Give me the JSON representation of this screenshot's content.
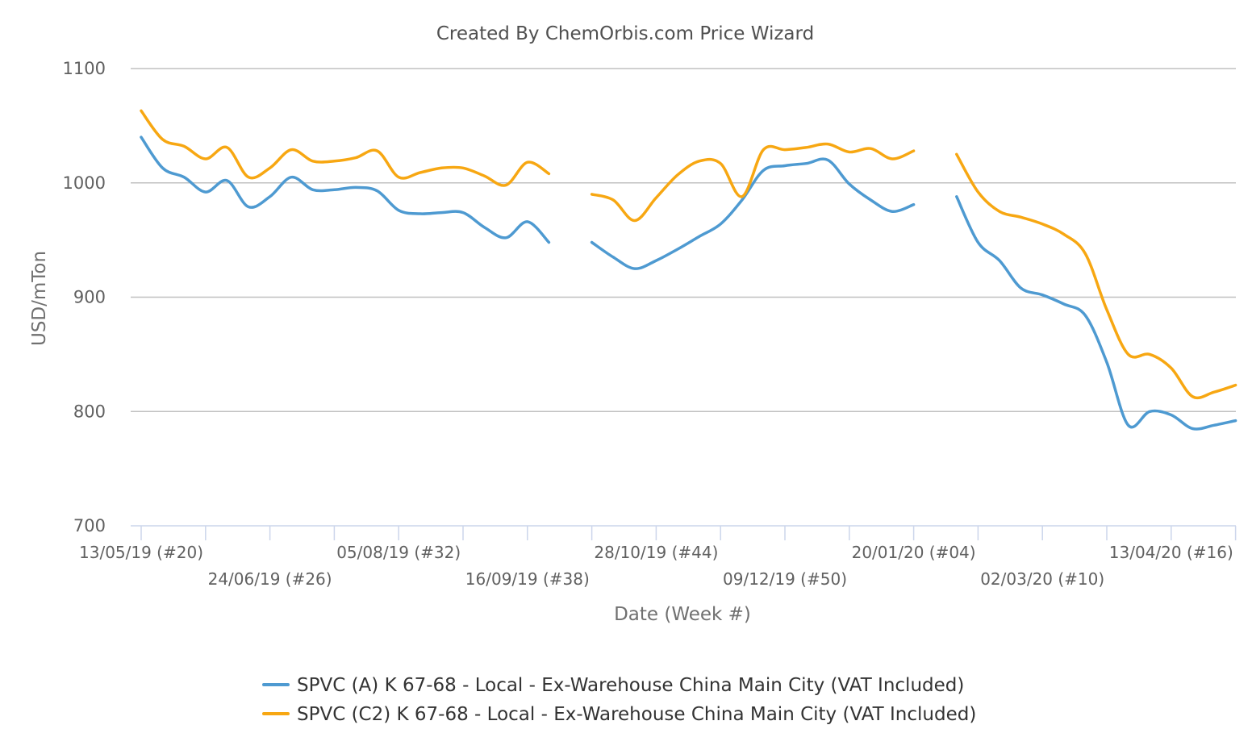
{
  "chart_data": {
    "type": "line",
    "title": "Created By ChemOrbis.com Price Wizard",
    "xlabel": "Date (Week #)",
    "ylabel": "USD/mTon",
    "ylim": [
      700,
      1100
    ],
    "yticks": [
      700,
      800,
      900,
      1000,
      1100
    ],
    "grid": true,
    "legend_position": "bottom",
    "x_tick_labels": [
      {
        "week_index": 0,
        "label": "13/05/19 (#20)",
        "row": 0
      },
      {
        "week_index": 6,
        "label": "24/06/19 (#26)",
        "row": 1
      },
      {
        "week_index": 12,
        "label": "05/08/19 (#32)",
        "row": 0
      },
      {
        "week_index": 18,
        "label": "16/09/19 (#38)",
        "row": 1
      },
      {
        "week_index": 24,
        "label": "28/10/19 (#44)",
        "row": 0
      },
      {
        "week_index": 30,
        "label": "09/12/19 (#50)",
        "row": 1
      },
      {
        "week_index": 36,
        "label": "20/01/20 (#04)",
        "row": 0
      },
      {
        "week_index": 42,
        "label": "02/03/20 (#10)",
        "row": 1
      },
      {
        "week_index": 48,
        "label": "13/04/20 (#16)",
        "row": 0
      }
    ],
    "series": [
      {
        "name": "SPVC (A) K 67-68 - Local - Ex-Warehouse China Main City (VAT Included)",
        "color": "#4e9ad1",
        "segments": [
          [
            [
              0,
              1040
            ],
            [
              1,
              1013
            ],
            [
              2,
              1005
            ],
            [
              3,
              992
            ],
            [
              4,
              1002
            ],
            [
              5,
              979
            ],
            [
              6,
              988
            ],
            [
              7,
              1005
            ],
            [
              8,
              994
            ],
            [
              9,
              994
            ],
            [
              10,
              996
            ],
            [
              11,
              993
            ],
            [
              12,
              976
            ],
            [
              13,
              973
            ],
            [
              14,
              974
            ],
            [
              15,
              974
            ],
            [
              16,
              961
            ],
            [
              17,
              952
            ],
            [
              18,
              966
            ],
            [
              19,
              948
            ]
          ],
          [
            [
              21,
              948
            ],
            [
              22,
              935
            ],
            [
              23,
              925
            ],
            [
              24,
              932
            ],
            [
              25,
              942
            ],
            [
              26,
              953
            ],
            [
              27,
              964
            ],
            [
              28,
              985
            ],
            [
              29,
              1011
            ],
            [
              30,
              1015
            ],
            [
              31,
              1017
            ],
            [
              32,
              1020
            ],
            [
              33,
              999
            ],
            [
              34,
              985
            ],
            [
              35,
              975
            ],
            [
              36,
              981
            ]
          ],
          [
            [
              38,
              988
            ],
            [
              39,
              948
            ],
            [
              40,
              932
            ],
            [
              41,
              908
            ],
            [
              42,
              902
            ],
            [
              43,
              894
            ],
            [
              44,
              884
            ],
            [
              45,
              843
            ],
            [
              46,
              788
            ],
            [
              47,
              800
            ],
            [
              48,
              797
            ],
            [
              49,
              785
            ],
            [
              50,
              788
            ],
            [
              51,
              792
            ]
          ]
        ]
      },
      {
        "name": "SPVC (C2) K 67-68 - Local - Ex-Warehouse China Main City (VAT Included)",
        "color": "#f7a712",
        "segments": [
          [
            [
              0,
              1063
            ],
            [
              1,
              1038
            ],
            [
              2,
              1032
            ],
            [
              3,
              1021
            ],
            [
              4,
              1031
            ],
            [
              5,
              1005
            ],
            [
              6,
              1013
            ],
            [
              7,
              1029
            ],
            [
              8,
              1019
            ],
            [
              9,
              1019
            ],
            [
              10,
              1022
            ],
            [
              11,
              1028
            ],
            [
              12,
              1005
            ],
            [
              13,
              1009
            ],
            [
              14,
              1013
            ],
            [
              15,
              1013
            ],
            [
              16,
              1006
            ],
            [
              17,
              998
            ],
            [
              18,
              1018
            ],
            [
              19,
              1008
            ]
          ],
          [
            [
              21,
              990
            ],
            [
              22,
              985
            ],
            [
              23,
              967
            ],
            [
              24,
              987
            ],
            [
              25,
              1007
            ],
            [
              26,
              1019
            ],
            [
              27,
              1017
            ],
            [
              28,
              988
            ],
            [
              29,
              1029
            ],
            [
              30,
              1029
            ],
            [
              31,
              1031
            ],
            [
              32,
              1034
            ],
            [
              33,
              1027
            ],
            [
              34,
              1030
            ],
            [
              35,
              1021
            ],
            [
              36,
              1028
            ]
          ],
          [
            [
              38,
              1025
            ],
            [
              39,
              992
            ],
            [
              40,
              975
            ],
            [
              41,
              970
            ],
            [
              42,
              964
            ],
            [
              43,
              955
            ],
            [
              44,
              938
            ],
            [
              45,
              889
            ],
            [
              46,
              850
            ],
            [
              47,
              850
            ],
            [
              48,
              838
            ],
            [
              49,
              813
            ],
            [
              50,
              817
            ],
            [
              51,
              823
            ]
          ]
        ]
      }
    ]
  }
}
